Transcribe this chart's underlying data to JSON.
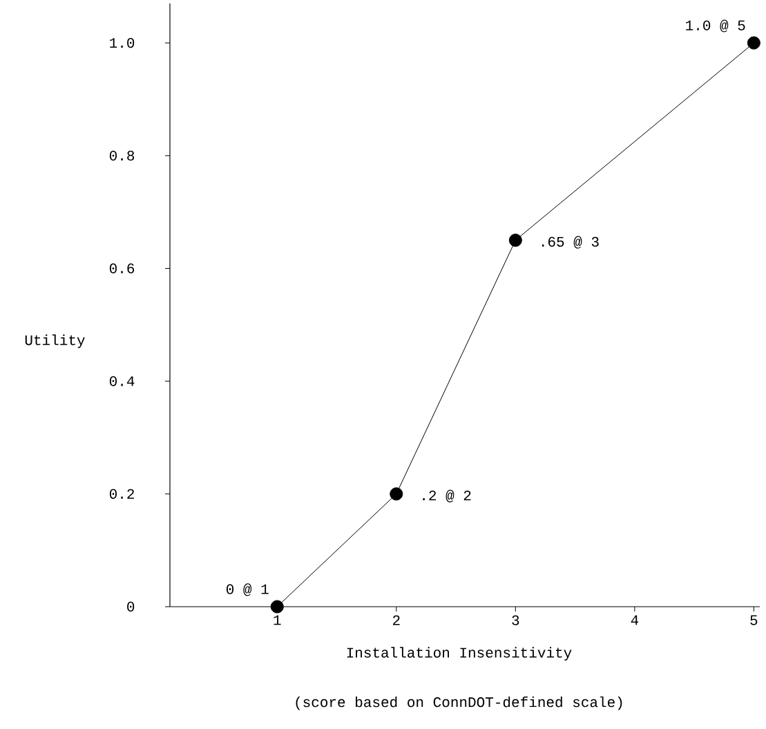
{
  "chart_data": {
    "type": "line",
    "xlabel": "Installation Insensitivity",
    "ylabel": "Utility",
    "x": [
      1,
      2,
      3,
      5
    ],
    "series": [
      {
        "color": "#000000",
        "values": [
          0,
          0.2,
          0.65,
          1.0
        ]
      }
    ],
    "xlim": [
      0.1,
      5.05
    ],
    "ylim": [
      0,
      1.07
    ],
    "xticks": [
      1,
      2,
      3,
      4,
      5
    ],
    "yticks": [
      0,
      {
        "value": 0.2,
        "label": "0.2"
      },
      {
        "value": 0.4,
        "label": "0.4"
      },
      {
        "value": 0.6,
        "label": "0.6"
      },
      {
        "value": 0.8,
        "label": "0.8"
      },
      {
        "value": 1,
        "label": "1.0"
      }
    ],
    "marker": "circle",
    "line_style": "solid",
    "annotations": [
      {
        "text": "0 @ 1",
        "x": 1,
        "y": 0
      },
      {
        "text": ".2 @ 2",
        "x": 2,
        "y": 0.2
      },
      {
        "text": ".65 @ 3",
        "x": 3,
        "y": 0.65
      },
      {
        "text": "1.0 @ 5",
        "x": 5,
        "y": 1.0
      },
      "(score based on ConnDOT-defined scale)"
    ]
  }
}
